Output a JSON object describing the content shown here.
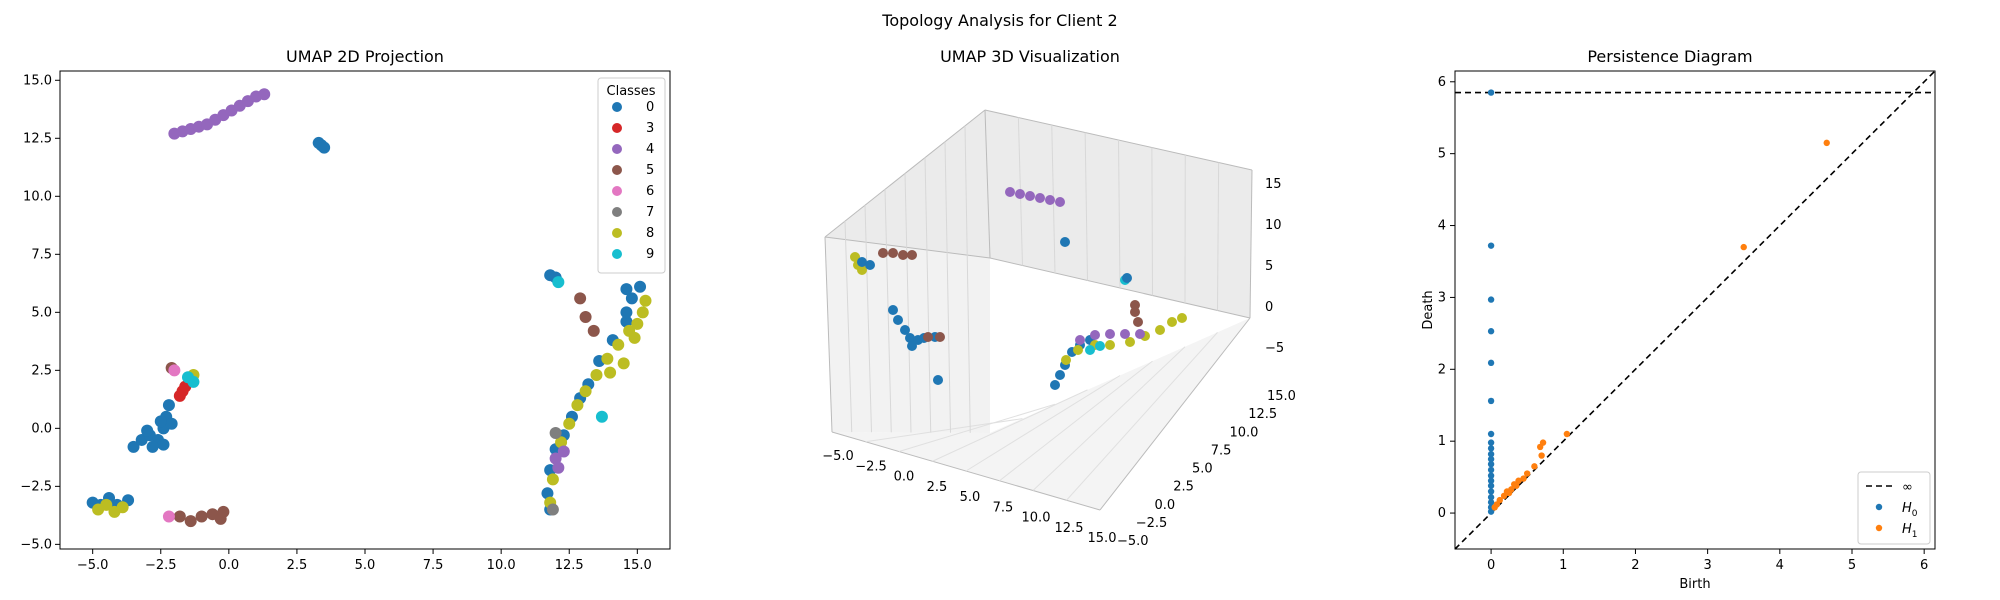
{
  "suptitle": "Topology Analysis for Client 2",
  "colors": {
    "0": "#1f77b4",
    "3": "#d62728",
    "4": "#9467bd",
    "5": "#8c564b",
    "6": "#e377c2",
    "7": "#7f7f7f",
    "8": "#bcbd22",
    "9": "#17becf",
    "h0": "#1f77b4",
    "h1": "#ff7f0e"
  },
  "chart_data": [
    {
      "type": "scatter",
      "title": "UMAP 2D Projection",
      "xlabel": "",
      "ylabel": "",
      "xlim": [
        -6.2,
        16.2
      ],
      "ylim": [
        -5.2,
        15.4
      ],
      "xticks": [
        -5.0,
        -2.5,
        0.0,
        2.5,
        5.0,
        7.5,
        10.0,
        12.5,
        15.0
      ],
      "yticks": [
        -5.0,
        -2.5,
        0.0,
        2.5,
        5.0,
        7.5,
        10.0,
        12.5,
        15.0
      ],
      "tick_labels_x": [
        "−5.0",
        "−2.5",
        "0.0",
        "2.5",
        "5.0",
        "7.5",
        "10.0",
        "12.5",
        "15.0"
      ],
      "tick_labels_y": [
        "−5.0",
        "−2.5",
        "0.0",
        "2.5",
        "5.0",
        "7.5",
        "10.0",
        "12.5",
        "15.0"
      ],
      "legend": {
        "title": "Classes",
        "position": "top-right",
        "entries": [
          "0",
          "3",
          "4",
          "5",
          "6",
          "7",
          "8",
          "9"
        ]
      },
      "series": [
        {
          "cls": "4",
          "points": [
            [
              -2.0,
              12.7
            ],
            [
              -1.7,
              12.8
            ],
            [
              -1.4,
              12.9
            ],
            [
              -1.1,
              13.0
            ],
            [
              -0.8,
              13.1
            ],
            [
              -0.5,
              13.3
            ],
            [
              -0.2,
              13.5
            ],
            [
              0.1,
              13.7
            ],
            [
              0.4,
              13.9
            ],
            [
              0.7,
              14.1
            ],
            [
              1.0,
              14.3
            ],
            [
              1.3,
              14.4
            ]
          ]
        },
        {
          "cls": "0",
          "points": [
            [
              3.3,
              12.3
            ],
            [
              3.4,
              12.2
            ],
            [
              3.5,
              12.1
            ]
          ]
        },
        {
          "cls": "0",
          "points": [
            [
              -5.0,
              -3.2
            ],
            [
              -4.7,
              -3.3
            ],
            [
              -4.4,
              -3.0
            ],
            [
              -4.1,
              -3.3
            ],
            [
              -3.7,
              -3.1
            ],
            [
              -3.5,
              -0.8
            ],
            [
              -3.2,
              -0.5
            ],
            [
              -2.9,
              -0.3
            ],
            [
              -2.6,
              -0.5
            ],
            [
              -2.4,
              0.0
            ],
            [
              -2.3,
              0.5
            ],
            [
              -2.2,
              1.0
            ],
            [
              -2.4,
              -0.7
            ],
            [
              -2.8,
              -0.8
            ],
            [
              -2.1,
              0.2
            ],
            [
              -3.0,
              -0.1
            ],
            [
              -2.5,
              0.3
            ]
          ]
        },
        {
          "cls": "8",
          "points": [
            [
              -4.8,
              -3.5
            ],
            [
              -4.5,
              -3.3
            ],
            [
              -4.2,
              -3.6
            ],
            [
              -3.9,
              -3.4
            ],
            [
              -1.3,
              2.3
            ],
            [
              -1.4,
              2.1
            ]
          ]
        },
        {
          "cls": "5",
          "points": [
            [
              -1.8,
              -3.8
            ],
            [
              -1.4,
              -4.0
            ],
            [
              -1.0,
              -3.8
            ],
            [
              -0.6,
              -3.7
            ],
            [
              -0.3,
              -3.9
            ],
            [
              -0.2,
              -3.6
            ],
            [
              -2.1,
              2.6
            ]
          ]
        },
        {
          "cls": "6",
          "points": [
            [
              -2.2,
              -3.8
            ],
            [
              -2.0,
              2.5
            ]
          ]
        },
        {
          "cls": "3",
          "points": [
            [
              -1.7,
              1.6
            ],
            [
              -1.6,
              1.8
            ],
            [
              -1.8,
              1.4
            ]
          ]
        },
        {
          "cls": "9",
          "points": [
            [
              -1.3,
              2.0
            ],
            [
              -1.5,
              2.2
            ]
          ]
        },
        {
          "cls": "0",
          "points": [
            [
              11.8,
              6.6
            ],
            [
              12.0,
              6.5
            ],
            [
              11.8,
              -3.5
            ],
            [
              11.7,
              -2.8
            ],
            [
              11.8,
              -1.8
            ],
            [
              12.0,
              -0.9
            ],
            [
              12.3,
              -0.3
            ],
            [
              12.6,
              0.5
            ],
            [
              12.9,
              1.3
            ],
            [
              13.2,
              1.9
            ],
            [
              13.6,
              2.9
            ],
            [
              14.1,
              3.8
            ],
            [
              14.6,
              4.6
            ],
            [
              14.8,
              5.6
            ],
            [
              14.6,
              6.0
            ],
            [
              15.1,
              6.1
            ],
            [
              14.6,
              5.0
            ]
          ]
        },
        {
          "cls": "8",
          "points": [
            [
              12.2,
              -0.6
            ],
            [
              12.5,
              0.2
            ],
            [
              12.8,
              1.0
            ],
            [
              13.1,
              1.6
            ],
            [
              13.5,
              2.3
            ],
            [
              13.9,
              3.0
            ],
            [
              14.3,
              3.6
            ],
            [
              14.7,
              4.2
            ],
            [
              15.0,
              4.5
            ],
            [
              15.2,
              5.0
            ],
            [
              15.3,
              5.5
            ],
            [
              14.9,
              3.9
            ],
            [
              14.5,
              2.8
            ],
            [
              14.0,
              2.4
            ],
            [
              11.8,
              -3.2
            ],
            [
              11.9,
              -2.2
            ]
          ]
        },
        {
          "cls": "5",
          "points": [
            [
              12.9,
              5.6
            ],
            [
              13.1,
              4.8
            ],
            [
              13.4,
              4.2
            ]
          ]
        },
        {
          "cls": "4",
          "points": [
            [
              12.0,
              -1.3
            ],
            [
              12.1,
              -1.7
            ],
            [
              12.3,
              -1.0
            ]
          ]
        },
        {
          "cls": "7",
          "points": [
            [
              12.0,
              -0.2
            ],
            [
              11.9,
              -3.5
            ]
          ]
        },
        {
          "cls": "9",
          "points": [
            [
              12.1,
              6.3
            ],
            [
              13.7,
              0.5
            ]
          ]
        }
      ]
    },
    {
      "type": "scatter",
      "title": "UMAP 3D Visualization",
      "xlabel": "",
      "ylabel": "",
      "x_tick_labels": [
        "−5.0",
        "−2.5",
        "0.0",
        "2.5",
        "5.0",
        "7.5",
        "10.0",
        "12.5",
        "15.0"
      ],
      "y_tick_labels": [
        "−5.0",
        "−2.5",
        "0.0",
        "2.5",
        "5.0",
        "7.5",
        "10.0",
        "12.5",
        "15.0"
      ],
      "z_tick_labels": [
        "−5",
        "0",
        "5",
        "10",
        "15"
      ],
      "series_summary": [
        "0",
        "4",
        "5",
        "8",
        "9"
      ]
    },
    {
      "type": "scatter",
      "title": "Persistence Diagram",
      "xlabel": "Birth",
      "ylabel": "Death",
      "xlim": [
        -0.5,
        6.15
      ],
      "ylim": [
        -0.5,
        6.15
      ],
      "xticks": [
        0,
        1,
        2,
        3,
        4,
        5,
        6
      ],
      "yticks": [
        0,
        1,
        2,
        3,
        4,
        5,
        6
      ],
      "infinity_level": 5.85,
      "legend": {
        "position": "bottom-right",
        "entries": [
          "∞",
          "H",
          "H"
        ],
        "subscripts": [
          "",
          "0",
          "1"
        ]
      },
      "series": [
        {
          "name": "H",
          "sub": "0",
          "points": [
            [
              0,
              5.85
            ],
            [
              0,
              3.72
            ],
            [
              0,
              2.97
            ],
            [
              0,
              2.53
            ],
            [
              0,
              2.09
            ],
            [
              0,
              1.56
            ],
            [
              0,
              1.1
            ],
            [
              0,
              0.98
            ],
            [
              0,
              0.9
            ],
            [
              0,
              0.82
            ],
            [
              0,
              0.75
            ],
            [
              0,
              0.68
            ],
            [
              0,
              0.6
            ],
            [
              0,
              0.52
            ],
            [
              0,
              0.45
            ],
            [
              0,
              0.38
            ],
            [
              0,
              0.3
            ],
            [
              0,
              0.22
            ],
            [
              0,
              0.15
            ],
            [
              0,
              0.08
            ],
            [
              0,
              0.02
            ]
          ]
        },
        {
          "name": "H",
          "sub": "1",
          "points": [
            [
              4.65,
              5.15
            ],
            [
              3.5,
              3.7
            ],
            [
              1.05,
              1.1
            ],
            [
              0.72,
              0.98
            ],
            [
              0.68,
              0.92
            ],
            [
              0.7,
              0.8
            ],
            [
              0.6,
              0.65
            ],
            [
              0.5,
              0.55
            ],
            [
              0.45,
              0.48
            ],
            [
              0.38,
              0.45
            ],
            [
              0.32,
              0.4
            ],
            [
              0.28,
              0.33
            ],
            [
              0.22,
              0.3
            ],
            [
              0.18,
              0.24
            ],
            [
              0.12,
              0.18
            ],
            [
              0.08,
              0.12
            ],
            [
              0.05,
              0.08
            ],
            [
              0.25,
              0.28
            ],
            [
              0.35,
              0.38
            ]
          ]
        }
      ]
    }
  ]
}
